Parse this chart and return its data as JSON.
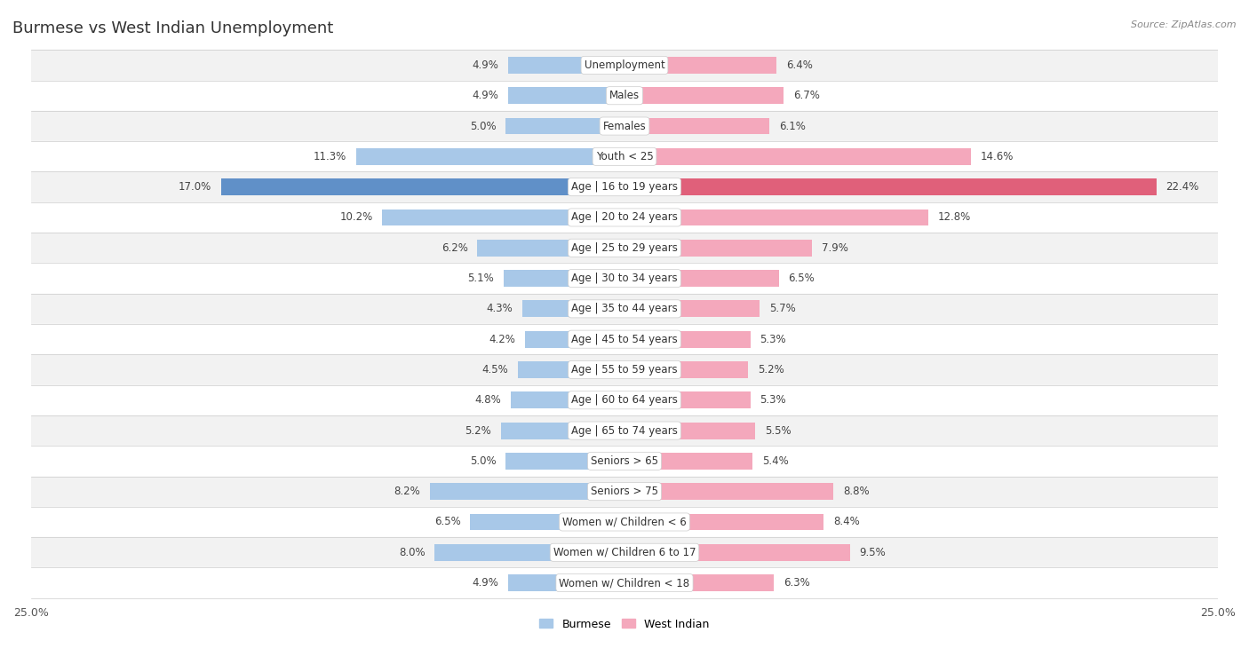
{
  "title": "Burmese vs West Indian Unemployment",
  "source": "Source: ZipAtlas.com",
  "categories": [
    "Unemployment",
    "Males",
    "Females",
    "Youth < 25",
    "Age | 16 to 19 years",
    "Age | 20 to 24 years",
    "Age | 25 to 29 years",
    "Age | 30 to 34 years",
    "Age | 35 to 44 years",
    "Age | 45 to 54 years",
    "Age | 55 to 59 years",
    "Age | 60 to 64 years",
    "Age | 65 to 74 years",
    "Seniors > 65",
    "Seniors > 75",
    "Women w/ Children < 6",
    "Women w/ Children 6 to 17",
    "Women w/ Children < 18"
  ],
  "burmese": [
    4.9,
    4.9,
    5.0,
    11.3,
    17.0,
    10.2,
    6.2,
    5.1,
    4.3,
    4.2,
    4.5,
    4.8,
    5.2,
    5.0,
    8.2,
    6.5,
    8.0,
    4.9
  ],
  "west_indian": [
    6.4,
    6.7,
    6.1,
    14.6,
    22.4,
    12.8,
    7.9,
    6.5,
    5.7,
    5.3,
    5.2,
    5.3,
    5.5,
    5.4,
    8.8,
    8.4,
    9.5,
    6.3
  ],
  "burmese_color": "#a8c8e8",
  "west_indian_color": "#f4a8bc",
  "burmese_highlight_color": "#6090c8",
  "west_indian_highlight_color": "#e0607a",
  "row_bg_light": "#f2f2f2",
  "row_bg_white": "#ffffff",
  "xlim": 25.0,
  "bar_height": 0.55,
  "legend_burmese": "Burmese",
  "legend_west_indian": "West Indian",
  "title_fontsize": 13,
  "label_fontsize": 8.5,
  "value_fontsize": 8.5
}
